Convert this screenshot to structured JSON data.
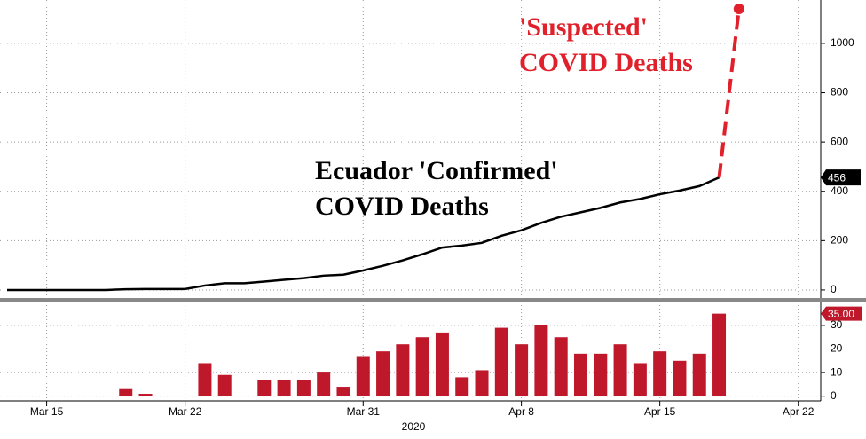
{
  "chart_data": [
    {
      "type": "line",
      "x": [
        "2020-03-13",
        "2020-03-14",
        "2020-03-15",
        "2020-03-16",
        "2020-03-17",
        "2020-03-18",
        "2020-03-19",
        "2020-03-20",
        "2020-03-21",
        "2020-03-22",
        "2020-03-23",
        "2020-03-24",
        "2020-03-25",
        "2020-03-26",
        "2020-03-27",
        "2020-03-28",
        "2020-03-29",
        "2020-03-30",
        "2020-03-31",
        "2020-04-01",
        "2020-04-02",
        "2020-04-03",
        "2020-04-04",
        "2020-04-05",
        "2020-04-06",
        "2020-04-07",
        "2020-04-08",
        "2020-04-09",
        "2020-04-10",
        "2020-04-11",
        "2020-04-12",
        "2020-04-13",
        "2020-04-14",
        "2020-04-15",
        "2020-04-16",
        "2020-04-17",
        "2020-04-18",
        "2020-04-19"
      ],
      "series": [
        {
          "color": "#000000",
          "values": [
            0,
            0,
            0,
            0,
            0,
            0,
            3,
            4,
            4,
            4,
            18,
            27,
            27,
            34,
            41,
            48,
            58,
            62,
            79,
            98,
            120,
            145,
            172,
            180,
            191,
            220,
            242,
            272,
            297,
            315,
            333,
            355,
            369,
            388,
            403,
            421,
            456,
            null
          ]
        },
        {
          "color": "#e0202a",
          "dashed": true,
          "values": [
            null,
            null,
            null,
            null,
            null,
            null,
            null,
            null,
            null,
            null,
            null,
            null,
            null,
            null,
            null,
            null,
            null,
            null,
            null,
            null,
            null,
            null,
            null,
            null,
            null,
            null,
            null,
            null,
            null,
            null,
            null,
            null,
            null,
            null,
            null,
            null,
            456,
            1140
          ]
        }
      ],
      "ylim": [
        -29,
        1158
      ],
      "yticks": [
        0,
        200,
        400,
        600,
        800,
        1000
      ],
      "grid": true,
      "xlim": [
        "2020-03-13",
        "2020-04-23"
      ],
      "xticks": [
        {
          "value": "2020-03-15",
          "label": "Mar 15"
        },
        {
          "value": "2020-03-22",
          "label": "Mar 22"
        },
        {
          "value": "2020-03-31",
          "label": "Mar 31"
        },
        {
          "value": "2020-04-08",
          "label": "Apr 8"
        },
        {
          "value": "2020-04-15",
          "label": "Apr 15"
        },
        {
          "value": "2020-04-22",
          "label": "Apr 22"
        }
      ],
      "xlabel": "2020",
      "annotations": [
        {
          "lines": [
            "'Suspected'",
            "COVID Deaths"
          ],
          "color": "#e0202a"
        },
        {
          "lines": [
            "Ecuador 'Confirmed'",
            "COVID Deaths"
          ],
          "color": "#000000"
        }
      ]
    },
    {
      "type": "bar",
      "x": [
        "2020-03-13",
        "2020-03-14",
        "2020-03-15",
        "2020-03-16",
        "2020-03-17",
        "2020-03-18",
        "2020-03-19",
        "2020-03-20",
        "2020-03-21",
        "2020-03-22",
        "2020-03-23",
        "2020-03-24",
        "2020-03-25",
        "2020-03-26",
        "2020-03-27",
        "2020-03-28",
        "2020-03-29",
        "2020-03-30",
        "2020-03-31",
        "2020-04-01",
        "2020-04-02",
        "2020-04-03",
        "2020-04-04",
        "2020-04-05",
        "2020-04-06",
        "2020-04-07",
        "2020-04-08",
        "2020-04-09",
        "2020-04-10",
        "2020-04-11",
        "2020-04-12",
        "2020-04-13",
        "2020-04-14",
        "2020-04-15",
        "2020-04-16",
        "2020-04-17",
        "2020-04-18",
        "2020-04-19"
      ],
      "color": "#c0182b",
      "values": [
        0,
        0,
        0,
        0,
        0,
        0,
        3,
        1,
        0,
        0,
        14,
        9,
        0,
        7,
        7,
        7,
        10,
        4,
        17,
        19,
        22,
        25,
        27,
        8,
        11,
        29,
        22,
        30,
        25,
        18,
        18,
        22,
        14,
        19,
        15,
        18,
        35,
        null
      ],
      "value_labels": [
        null,
        null,
        null,
        null,
        null,
        null,
        null,
        null,
        null,
        null,
        null,
        null,
        null,
        null,
        null,
        null,
        null,
        null,
        null,
        null,
        null,
        null,
        null,
        null,
        null,
        null,
        null,
        null,
        null,
        null,
        null,
        null,
        null,
        null,
        null,
        null,
        "35.00",
        null
      ],
      "ylim": [
        -2,
        39
      ],
      "yticks": [
        0,
        10,
        20,
        30
      ],
      "grid": true
    }
  ]
}
